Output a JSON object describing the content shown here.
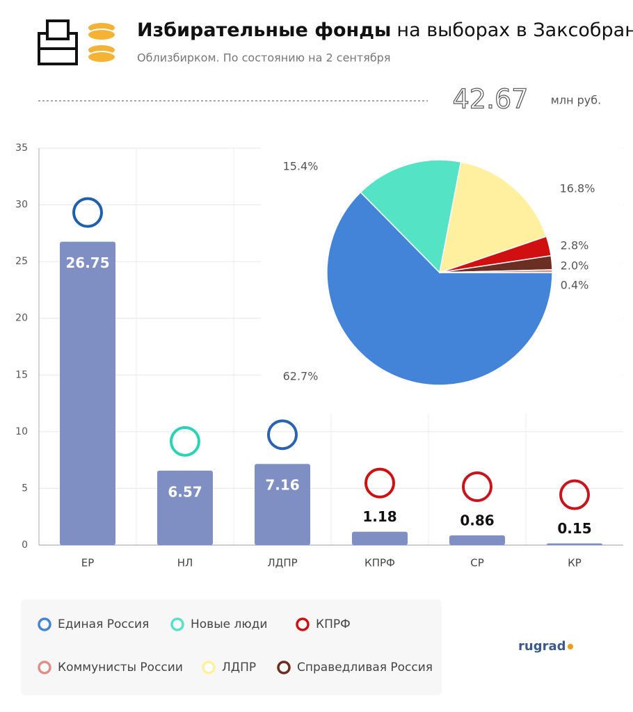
{
  "header": {
    "title_bold": "Избирательные фонды",
    "title_rest": "на выборах в Заксобрание",
    "subtitle": "Облизбирком. По состоянию на 2 сентября"
  },
  "total": {
    "value": 42.67,
    "unit": "млн руб."
  },
  "chart_data": [
    {
      "type": "bar",
      "categories": [
        "ЕР",
        "НЛ",
        "ЛДПР",
        "КПРФ",
        "СР",
        "КР"
      ],
      "values": [
        26.75,
        6.57,
        7.16,
        1.18,
        0.86,
        0.15
      ],
      "color": "#7f8fc4",
      "ylim": [
        0,
        35
      ],
      "yticks": [
        0,
        5,
        10,
        15,
        20,
        25,
        30,
        35
      ],
      "grid": true
    },
    {
      "type": "pie",
      "values": [
        62.7,
        15.4,
        16.8,
        2.8,
        2.0,
        0.4
      ],
      "value_labels": [
        "62.7%",
        "15.4%",
        "16.8%",
        "2.8%",
        "2.0%",
        "0.4%"
      ],
      "colors": [
        "#4484d8",
        "#55e3c5",
        "#fff0a0",
        "#d01010",
        "#6b2e22",
        "#e08e86"
      ]
    }
  ],
  "legend": {
    "items": [
      {
        "name": "Единая Россия",
        "color": "#4484d8"
      },
      {
        "name": "Новые люди",
        "color": "#55e3c5"
      },
      {
        "name": "КПРФ",
        "color": "#d01010"
      },
      {
        "name": "Коммунисты России",
        "color": "#e08e86"
      },
      {
        "name": "ЛДПР",
        "color": "#fff0a0"
      },
      {
        "name": "Справедливая Россия",
        "color": "#6b2e22"
      }
    ]
  },
  "brand": "rugrad"
}
